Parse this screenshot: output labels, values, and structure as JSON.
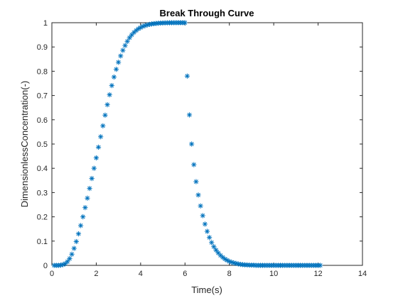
{
  "chart_data": {
    "type": "scatter",
    "title": "Break Through Curve",
    "xlabel": "Time(s)",
    "ylabel": "DimensionlessConcentration(-)",
    "xlim": [
      0,
      14
    ],
    "ylim": [
      0,
      1
    ],
    "xticks": [
      "0",
      "2",
      "4",
      "6",
      "8",
      "10",
      "12",
      "14"
    ],
    "yticks": [
      "0",
      "0.1",
      "0.2",
      "0.3",
      "0.4",
      "0.5",
      "0.6",
      "0.7",
      "0.8",
      "0.9",
      "1"
    ],
    "grid": false,
    "marker": "asterisk",
    "marker_color": "#0072BD",
    "x": [
      0.1,
      0.2,
      0.3,
      0.4,
      0.5,
      0.6,
      0.7,
      0.8,
      0.9,
      1.0,
      1.1,
      1.2,
      1.3,
      1.4,
      1.5,
      1.6,
      1.7,
      1.8,
      1.9,
      2.0,
      2.1,
      2.2,
      2.3,
      2.4,
      2.5,
      2.6,
      2.7,
      2.8,
      2.9,
      3.0,
      3.1,
      3.2,
      3.3,
      3.4,
      3.5,
      3.6,
      3.7,
      3.8,
      3.9,
      4.0,
      4.1,
      4.2,
      4.3,
      4.4,
      4.5,
      4.6,
      4.7,
      4.8,
      4.9,
      5.0,
      5.1,
      5.2,
      5.3,
      5.4,
      5.5,
      5.6,
      5.7,
      5.8,
      5.9,
      6.0,
      6.1,
      6.2,
      6.3,
      6.4,
      6.5,
      6.6,
      6.7,
      6.8,
      6.9,
      7.0,
      7.1,
      7.2,
      7.3,
      7.4,
      7.5,
      7.6,
      7.7,
      7.8,
      7.9,
      8.0,
      8.1,
      8.2,
      8.3,
      8.4,
      8.5,
      8.6,
      8.7,
      8.8,
      8.9,
      9.0,
      9.1,
      9.2,
      9.3,
      9.4,
      9.5,
      9.6,
      9.7,
      9.8,
      9.9,
      10.0,
      10.1,
      10.2,
      10.3,
      10.4,
      10.5,
      10.6,
      10.7,
      10.8,
      10.9,
      11.0,
      11.1,
      11.2,
      11.3,
      11.4,
      11.5,
      11.6,
      11.7,
      11.8,
      11.9,
      12.0,
      12.1
    ],
    "y": [
      0.0,
      0.0,
      0.0,
      0.001,
      0.003,
      0.007,
      0.015,
      0.028,
      0.046,
      0.07,
      0.098,
      0.13,
      0.164,
      0.2,
      0.238,
      0.277,
      0.317,
      0.358,
      0.4,
      0.443,
      0.487,
      0.53,
      0.575,
      0.619,
      0.662,
      0.703,
      0.741,
      0.776,
      0.808,
      0.837,
      0.863,
      0.886,
      0.906,
      0.923,
      0.938,
      0.95,
      0.96,
      0.968,
      0.975,
      0.98,
      0.985,
      0.988,
      0.991,
      0.993,
      0.995,
      0.996,
      0.997,
      0.998,
      0.9985,
      0.999,
      0.9993,
      0.9995,
      0.9997,
      0.9998,
      0.9999,
      1.0,
      1.0,
      1.0,
      1.0,
      1.0,
      0.78,
      0.62,
      0.5,
      0.415,
      0.345,
      0.29,
      0.245,
      0.205,
      0.17,
      0.14,
      0.115,
      0.094,
      0.077,
      0.063,
      0.051,
      0.041,
      0.033,
      0.026,
      0.021,
      0.016,
      0.013,
      0.01,
      0.008,
      0.006,
      0.004,
      0.003,
      0.002,
      0.002,
      0.001,
      0.001,
      0.001,
      0.0,
      0.0,
      0.0,
      0.0,
      0.0,
      0.0,
      0.0,
      0.0,
      0.0,
      0.0,
      0.0,
      0.0,
      0.0,
      0.0,
      0.0,
      0.0,
      0.0,
      0.0,
      0.0,
      0.0,
      0.0,
      0.0,
      0.0,
      0.0,
      0.0,
      0.0,
      0.0,
      0.0,
      0.0,
      0.0
    ]
  }
}
